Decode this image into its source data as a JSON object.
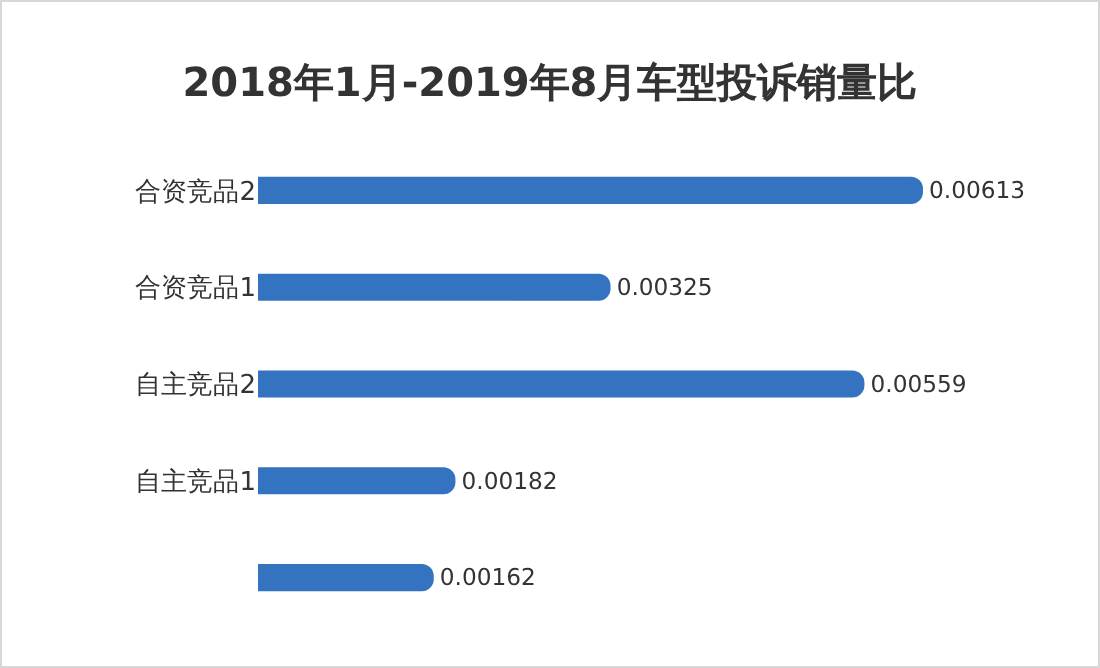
{
  "chart_data": {
    "type": "bar",
    "title": "2018年1月-2019年8月车型投诉销量比",
    "orientation": "horizontal",
    "categories": [
      "合资竞品2",
      "合资竞品1",
      "自主竞品2",
      "自主竞品1",
      null
    ],
    "values": [
      0.00613,
      0.00325,
      0.00559,
      0.00182,
      0.00162
    ],
    "color": "#3373bf",
    "data_labels": true
  }
}
